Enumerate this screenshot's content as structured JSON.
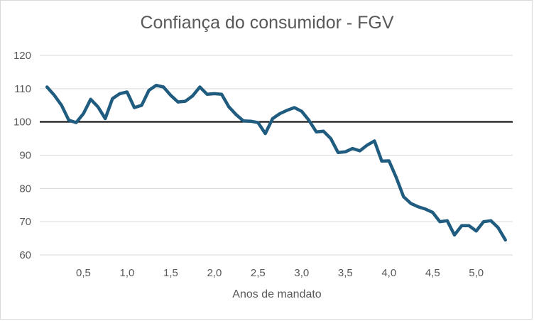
{
  "chart_data": {
    "type": "line",
    "title": "Confiança do consumidor - FGV",
    "xlabel": "Anos de mandato",
    "ylabel": "",
    "xlim": [
      0.0,
      5.417
    ],
    "ylim": [
      60,
      120
    ],
    "y_ticks": [
      "60",
      "70",
      "80",
      "90",
      "100",
      "110",
      "120"
    ],
    "x_ticks": [
      {
        "value": 0.5,
        "label": "0,5"
      },
      {
        "value": 1.0,
        "label": "1,0"
      },
      {
        "value": 1.5,
        "label": "1,5"
      },
      {
        "value": 2.0,
        "label": "2,0"
      },
      {
        "value": 2.5,
        "label": "2,5"
      },
      {
        "value": 3.0,
        "label": "3,0"
      },
      {
        "value": 3.5,
        "label": "3,5"
      },
      {
        "value": 4.0,
        "label": "4,0"
      },
      {
        "value": 4.5,
        "label": "4,5"
      },
      {
        "value": 5.0,
        "label": "5,0"
      }
    ],
    "reference_line": 100,
    "grid": true,
    "line_color": "#1f5c7f",
    "reference_color": "#000000",
    "grid_color": "#d9d9d9",
    "series": [
      {
        "x": [
          0.083,
          0.167,
          0.25,
          0.333,
          0.417,
          0.5,
          0.583,
          0.667,
          0.75,
          0.833,
          0.917,
          1.0,
          1.083,
          1.167,
          1.25,
          1.333,
          1.417,
          1.5,
          1.583,
          1.667,
          1.75,
          1.833,
          1.917,
          2.0,
          2.083,
          2.167,
          2.25,
          2.333,
          2.417,
          2.5,
          2.583,
          2.667,
          2.75,
          2.833,
          2.917,
          3.0,
          3.083,
          3.167,
          3.25,
          3.333,
          3.417,
          3.5,
          3.583,
          3.667,
          3.75,
          3.833,
          3.917,
          4.0,
          4.083,
          4.167,
          4.25,
          4.333,
          4.417,
          4.5,
          4.583,
          4.667,
          4.75,
          4.833,
          4.917,
          5.0,
          5.083,
          5.167,
          5.25,
          5.333
        ],
        "y": [
          110.5,
          108,
          105,
          100.5,
          99.8,
          102.5,
          106.8,
          104.5,
          101,
          107,
          108.5,
          109,
          104.3,
          105,
          109.5,
          111,
          110.5,
          108,
          106,
          106.2,
          107.8,
          110.5,
          108.3,
          108.5,
          108.3,
          104.5,
          102.2,
          100.3,
          100.2,
          99.8,
          96.5,
          101,
          102.5,
          103.5,
          104.3,
          103.2,
          100.5,
          97,
          97.2,
          95,
          90.8,
          91,
          92,
          91.3,
          93,
          94.3,
          88.2,
          88.3,
          83.3,
          77.5,
          75.5,
          74.5,
          73.8,
          72.8,
          70,
          70.3,
          66,
          68.8,
          68.8,
          67.2,
          70,
          70.3,
          68.2,
          64.5
        ]
      }
    ]
  }
}
